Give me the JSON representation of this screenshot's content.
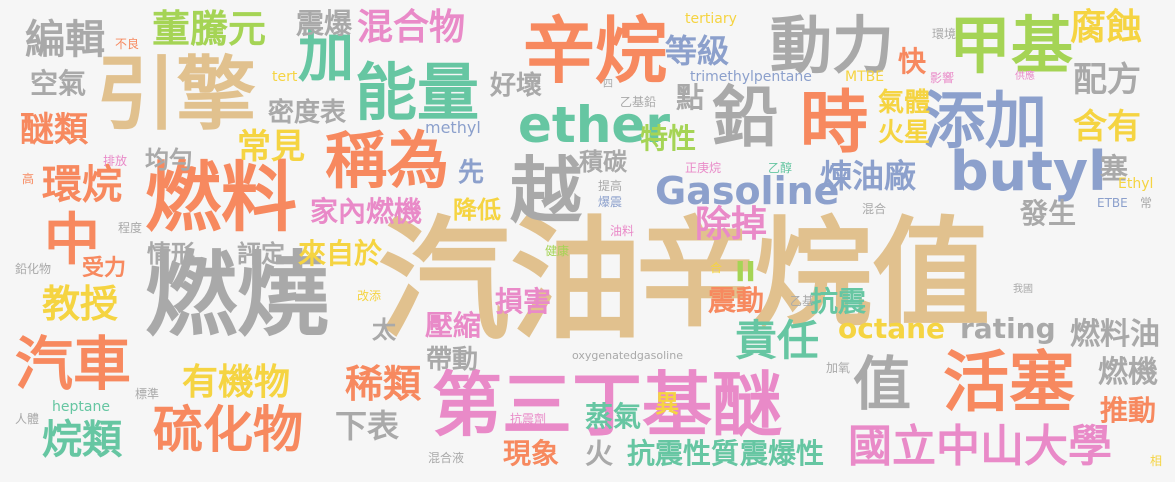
{
  "words": [
    {
      "id": "w1",
      "text": "汽油",
      "color": "tan"
    },
    {
      "id": "w2",
      "text": "辛烷值",
      "color": "tan"
    },
    {
      "id": "w3",
      "text": "引擎",
      "color": "tan"
    },
    {
      "id": "w4",
      "text": "燃燒",
      "color": "gray"
    },
    {
      "id": "w5",
      "text": "第三丁基醚",
      "color": "pink"
    },
    {
      "id": "w6",
      "text": "辛烷",
      "color": "orange"
    },
    {
      "id": "w7",
      "text": "燃料",
      "color": "orange"
    },
    {
      "id": "w8",
      "text": "甲基",
      "color": "lime"
    },
    {
      "id": "w9",
      "text": "鉛",
      "color": "gray"
    },
    {
      "id": "w10",
      "text": "動力",
      "color": "gray"
    },
    {
      "id": "w11",
      "text": "ether",
      "color": "green"
    },
    {
      "id": "w12",
      "text": "butyl",
      "color": "blue"
    },
    {
      "id": "w13",
      "text": "時",
      "color": "orange"
    },
    {
      "id": "w14",
      "text": "越",
      "color": "gray"
    },
    {
      "id": "w15",
      "text": "添加",
      "color": "blue"
    },
    {
      "id": "w16",
      "text": "能量",
      "color": "green"
    },
    {
      "id": "w17",
      "text": "加",
      "color": "green"
    },
    {
      "id": "w18",
      "text": "稱為",
      "color": "orange"
    },
    {
      "id": "w19",
      "text": "活塞",
      "color": "orange"
    },
    {
      "id": "w20",
      "text": "硫化物",
      "color": "orange"
    },
    {
      "id": "w21",
      "text": "汽車",
      "color": "orange"
    },
    {
      "id": "w22",
      "text": "中",
      "color": "orange"
    },
    {
      "id": "w23",
      "text": "國立中山大學",
      "color": "pink"
    },
    {
      "id": "w24",
      "text": "Gasoline",
      "color": "blue"
    },
    {
      "id": "w25",
      "text": "值",
      "color": "gray"
    },
    {
      "id": "w26",
      "text": "混合物",
      "color": "pink"
    },
    {
      "id": "w27",
      "text": "董騰元",
      "color": "lime"
    },
    {
      "id": "w28",
      "text": "編輯",
      "color": "gray"
    },
    {
      "id": "w29",
      "text": "腐蝕",
      "color": "yellow"
    },
    {
      "id": "w30",
      "text": "配方",
      "color": "gray"
    },
    {
      "id": "w31",
      "text": "含有",
      "color": "yellow"
    },
    {
      "id": "w32",
      "text": "等級",
      "color": "blue"
    },
    {
      "id": "w33",
      "text": "教授",
      "color": "yellow"
    },
    {
      "id": "w34",
      "text": "烷類",
      "color": "green"
    },
    {
      "id": "w35",
      "text": "有機物",
      "color": "yellow"
    },
    {
      "id": "w36",
      "text": "稀類",
      "color": "orange"
    },
    {
      "id": "w37",
      "text": "責任",
      "color": "green"
    },
    {
      "id": "w38",
      "text": "環烷",
      "color": "orange"
    },
    {
      "id": "w39",
      "text": "煉油廠",
      "color": "blue"
    },
    {
      "id": "w40",
      "text": "常見",
      "color": "yellow"
    },
    {
      "id": "w41",
      "text": "醚類",
      "color": "orange"
    },
    {
      "id": "w42",
      "text": "空氣",
      "color": "gray"
    },
    {
      "id": "w43",
      "text": "密度表",
      "color": "gray"
    },
    {
      "id": "w44",
      "text": "家內燃機",
      "color": "pink"
    },
    {
      "id": "w45",
      "text": "除掉",
      "color": "pink"
    },
    {
      "id": "w46",
      "text": "octane",
      "color": "yellow"
    },
    {
      "id": "w47",
      "text": "rating",
      "color": "gray"
    },
    {
      "id": "w48",
      "text": "燃料油",
      "color": "gray"
    },
    {
      "id": "w49",
      "text": "燃機",
      "color": "gray"
    },
    {
      "id": "w50",
      "text": "推動",
      "color": "orange"
    },
    {
      "id": "w51",
      "text": "下表",
      "color": "gray"
    },
    {
      "id": "w52",
      "text": "蒸氣",
      "color": "green"
    },
    {
      "id": "w53",
      "text": "抗震性質",
      "color": "green"
    },
    {
      "id": "w54",
      "text": "震爆性",
      "color": "green"
    },
    {
      "id": "w55",
      "text": "現象",
      "color": "orange"
    },
    {
      "id": "w56",
      "text": "損害",
      "color": "pink"
    },
    {
      "id": "w57",
      "text": "壓縮",
      "color": "pink"
    },
    {
      "id": "w58",
      "text": "帶動",
      "color": "gray"
    },
    {
      "id": "w59",
      "text": "震動",
      "color": "orange"
    },
    {
      "id": "w60",
      "text": "抗震",
      "color": "green"
    },
    {
      "id": "w61",
      "text": "特性",
      "color": "lime"
    },
    {
      "id": "w62",
      "text": "氣體",
      "color": "yellow"
    },
    {
      "id": "w63",
      "text": "火星",
      "color": "yellow"
    },
    {
      "id": "w64",
      "text": "發生",
      "color": "gray"
    },
    {
      "id": "w65",
      "text": "塞",
      "color": "gray"
    },
    {
      "id": "w66",
      "text": "震爆",
      "color": "gray"
    },
    {
      "id": "w67",
      "text": "快",
      "color": "orange"
    },
    {
      "id": "w68",
      "text": "好壞",
      "color": "gray"
    },
    {
      "id": "w69",
      "text": "點",
      "color": "gray"
    },
    {
      "id": "w70",
      "text": "積碳",
      "color": "gray"
    },
    {
      "id": "w71",
      "text": "降低",
      "color": "yellow"
    },
    {
      "id": "w72",
      "text": "先",
      "color": "blue"
    },
    {
      "id": "w73",
      "text": "來自於",
      "color": "yellow"
    },
    {
      "id": "w74",
      "text": "評定",
      "color": "gray"
    },
    {
      "id": "w75",
      "text": "均勻",
      "color": "gray"
    },
    {
      "id": "w76",
      "text": "情形",
      "color": "gray"
    },
    {
      "id": "w77",
      "text": "受力",
      "color": "orange"
    },
    {
      "id": "w78",
      "text": "太",
      "color": "gray"
    },
    {
      "id": "w79",
      "text": "II",
      "color": "lime"
    },
    {
      "id": "w80",
      "text": "火",
      "color": "gray"
    },
    {
      "id": "w81",
      "text": "異",
      "color": "yellow"
    },
    {
      "id": "w82",
      "text": "tertiary",
      "color": "yellow"
    },
    {
      "id": "w83",
      "text": "trimethylpentane",
      "color": "blue"
    },
    {
      "id": "w84",
      "text": "MTBE",
      "color": "yellow"
    },
    {
      "id": "w85",
      "text": "methyl",
      "color": "blue"
    },
    {
      "id": "w86",
      "text": "tert",
      "color": "yellow"
    },
    {
      "id": "w87",
      "text": "不良",
      "color": "orange"
    },
    {
      "id": "w88",
      "text": "環境",
      "color": "gray"
    },
    {
      "id": "w89",
      "text": "影響",
      "color": "pink"
    },
    {
      "id": "w90",
      "text": "供應",
      "color": "pink"
    },
    {
      "id": "w91",
      "text": "乙基鉛",
      "color": "gray"
    },
    {
      "id": "w92",
      "text": "四",
      "color": "gray"
    },
    {
      "id": "w93",
      "text": "正庚烷",
      "color": "pink"
    },
    {
      "id": "w94",
      "text": "乙醇",
      "color": "green"
    },
    {
      "id": "w95",
      "text": "提高",
      "color": "gray"
    },
    {
      "id": "w96",
      "text": "爆震",
      "color": "blue"
    },
    {
      "id": "w97",
      "text": "Ethyl",
      "color": "yellow"
    },
    {
      "id": "w98",
      "text": "混合",
      "color": "gray"
    },
    {
      "id": "w99",
      "text": "ETBE",
      "color": "blue"
    },
    {
      "id": "w100",
      "text": "常",
      "color": "gray"
    },
    {
      "id": "w101",
      "text": "排放",
      "color": "pink"
    },
    {
      "id": "w102",
      "text": "高",
      "color": "orange"
    },
    {
      "id": "w103",
      "text": "程度",
      "color": "gray"
    },
    {
      "id": "w104",
      "text": "鉛化物",
      "color": "gray"
    },
    {
      "id": "w105",
      "text": "健康",
      "color": "lime"
    },
    {
      "id": "w106",
      "text": "油料",
      "color": "pink"
    },
    {
      "id": "w107",
      "text": "改添",
      "color": "yellow"
    },
    {
      "id": "w108",
      "text": "合",
      "color": "yellow"
    },
    {
      "id": "w109",
      "text": "乙基",
      "color": "gray"
    },
    {
      "id": "w110",
      "text": "我國",
      "color": "gray"
    },
    {
      "id": "w111",
      "text": "oxygenatedgasoline",
      "color": "gray"
    },
    {
      "id": "w112",
      "text": "加氧",
      "color": "gray"
    },
    {
      "id": "w113",
      "text": "標準",
      "color": "gray"
    },
    {
      "id": "w114",
      "text": "heptane",
      "color": "green"
    },
    {
      "id": "w115",
      "text": "人體",
      "color": "gray"
    },
    {
      "id": "w116",
      "text": "抗震劑",
      "color": "pink"
    },
    {
      "id": "w117",
      "text": "混合液",
      "color": "gray"
    },
    {
      "id": "w118",
      "text": "相",
      "color": "yellow"
    }
  ]
}
